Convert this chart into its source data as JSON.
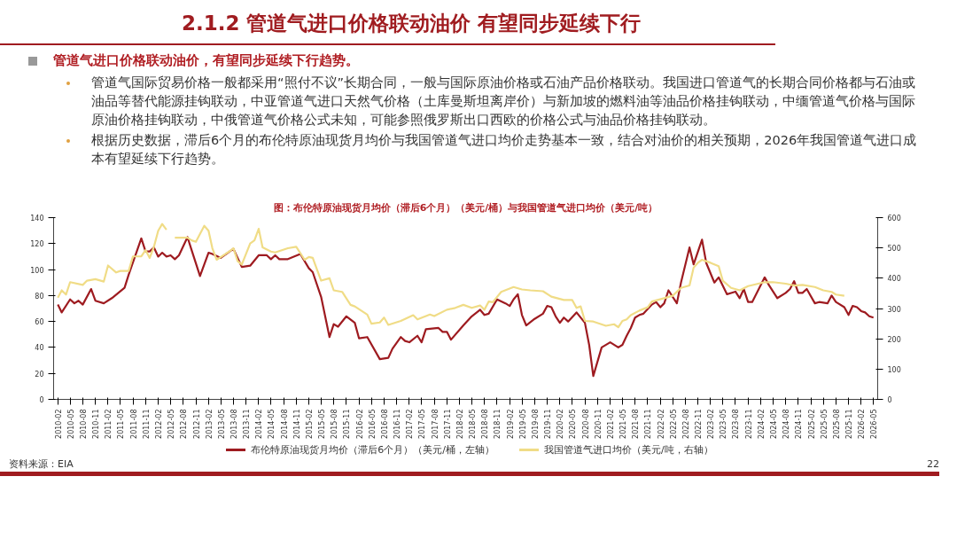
{
  "chart_data": {
    "type": "line",
    "title": "2.1.2 管道气进口价格联动油价 有望同步延续下行",
    "subtitle": "图：布伦特原油现货月均价（滞后6个月）（美元/桶）与我国管道气进口均价（美元/吨）",
    "annotations": [
      "管道气进口价格联动油价，有望同步延续下行趋势。",
      "管道气国际贸易价格一般都采用“照付不议”长期合同，一般与国际原油价格或石油产品价格联动。我国进口管道气的长期合同价格都与石油或油品等替代能源挂钩联动，中亚管道气进口天然气价格（土库曼斯坦离岸价）与新加坡的燃料油等油品价格挂钩联动，中缅管道气价格与国际原油价格挂钩联动，中俄管道气价格公式未知，可能参照俄罗斯出口西欧的价格公式与油品价格挂钩联动。",
      "根据历史数据，滞后6个月的布伦特原油现货月均价与我国管道气进口均价走势基本一致，结合对油价的相关预期，2026年我国管道气进口成本有望延续下行趋势。",
      "资料来源：EIA",
      "22"
    ],
    "xlim": [
      "2010-01",
      "2026-06"
    ],
    "xticks": [
      "2010-02",
      "2010-05",
      "2010-08",
      "2010-11",
      "2011-02",
      "2011-05",
      "2011-08",
      "2011-11",
      "2012-02",
      "2012-05",
      "2012-08",
      "2012-11",
      "2013-02",
      "2013-05",
      "2013-08",
      "2013-11",
      "2014-02",
      "2014-05",
      "2014-08",
      "2014-11",
      "2015-02",
      "2015-05",
      "2015-08",
      "2015-11",
      "2016-02",
      "2016-05",
      "2016-08",
      "2016-11",
      "2017-02",
      "2017-05",
      "2017-08",
      "2017-11",
      "2018-02",
      "2018-05",
      "2018-08",
      "2018-11",
      "2019-02",
      "2019-05",
      "2019-08",
      "2019-11",
      "2020-02",
      "2020-05",
      "2020-08",
      "2020-11",
      "2021-02",
      "2021-05",
      "2021-08",
      "2021-11",
      "2022-02",
      "2022-05",
      "2022-08",
      "2022-11",
      "2023-02",
      "2023-05",
      "2023-08",
      "2023-11",
      "2024-02",
      "2024-05",
      "2024-08",
      "2024-11",
      "2025-02",
      "2025-05",
      "2025-08",
      "2025-11",
      "2026-02",
      "2026-05"
    ],
    "ylim": [
      0,
      140
    ],
    "yticks": [
      0,
      20,
      40,
      60,
      80,
      100,
      120,
      140
    ],
    "y2lim": [
      0,
      600
    ],
    "y2ticks": [
      0,
      100,
      200,
      300,
      400,
      500,
      600
    ],
    "legend": "bottom",
    "series": [
      {
        "name": "布伦特原油现货月均价（滞后6个月）（美元/桶，左轴）",
        "color": "#9e1b20",
        "x": [
          "2010-02",
          "2010-03",
          "2010-05",
          "2010-06",
          "2010-07",
          "2010-08",
          "2010-10",
          "2010-11",
          "2011-01",
          "2011-03",
          "2011-06",
          "2011-07",
          "2011-10",
          "2011-11",
          "2011-12",
          "2012-01",
          "2012-02",
          "2012-03",
          "2012-04",
          "2012-05",
          "2012-06",
          "2012-07",
          "2012-09",
          "2012-10",
          "2012-12",
          "2013-02",
          "2013-03",
          "2013-05",
          "2013-08",
          "2013-10",
          "2013-12",
          "2014-02",
          "2014-04",
          "2014-05",
          "2014-06",
          "2014-07",
          "2014-09",
          "2014-12",
          "2015-02",
          "2015-03",
          "2015-05",
          "2015-07",
          "2015-08",
          "2015-09",
          "2015-11",
          "2016-01",
          "2016-02",
          "2016-04",
          "2016-07",
          "2016-09",
          "2016-10",
          "2016-12",
          "2017-01",
          "2017-02",
          "2017-04",
          "2017-05",
          "2017-06",
          "2017-09",
          "2017-10",
          "2017-11",
          "2017-12",
          "2018-03",
          "2018-05",
          "2018-07",
          "2018-08",
          "2018-09",
          "2018-11",
          "2019-01",
          "2019-02",
          "2019-03",
          "2019-04",
          "2019-05",
          "2019-06",
          "2019-08",
          "2019-10",
          "2019-11",
          "2019-12",
          "2020-01",
          "2020-02",
          "2020-03",
          "2020-04",
          "2020-06",
          "2020-08",
          "2020-09",
          "2020-10",
          "2020-12",
          "2021-02",
          "2021-04",
          "2021-05",
          "2021-06",
          "2021-07",
          "2021-08",
          "2021-09",
          "2021-10",
          "2021-12",
          "2022-01",
          "2022-02",
          "2022-03",
          "2022-04",
          "2022-06",
          "2022-07",
          "2022-09",
          "2022-10",
          "2022-12",
          "2023-01",
          "2023-03",
          "2023-04",
          "2023-06",
          "2023-07",
          "2023-08",
          "2023-09",
          "2023-10",
          "2023-11",
          "2023-12",
          "2024-03",
          "2024-04",
          "2024-06",
          "2024-08",
          "2024-09",
          "2024-10",
          "2024-11",
          "2024-12",
          "2025-01",
          "2025-03",
          "2025-04",
          "2025-06",
          "2025-07",
          "2025-08",
          "2025-10",
          "2025-11",
          "2025-12",
          "2026-01",
          "2026-02",
          "2026-03",
          "2026-04",
          "2026-05"
        ],
        "values": [
          73,
          67,
          77,
          74,
          76,
          73,
          85,
          76,
          74,
          78,
          86,
          96,
          124,
          114,
          114,
          117,
          110,
          113,
          110,
          111,
          108,
          111,
          125,
          115,
          95,
          113,
          112,
          109,
          116,
          102,
          103,
          111,
          111,
          108,
          111,
          108,
          108,
          112,
          101,
          98,
          79,
          48,
          58,
          56,
          64,
          59,
          47,
          48,
          31,
          32,
          39,
          48,
          45,
          44,
          49,
          44,
          54,
          55,
          52,
          52,
          46,
          57,
          64,
          69,
          65,
          66,
          77,
          74,
          72,
          77,
          81,
          65,
          57,
          62,
          66,
          72,
          71,
          64,
          59,
          63,
          60,
          67,
          59,
          42,
          18,
          40,
          44,
          40,
          42,
          49,
          55,
          63,
          65,
          66,
          73,
          75,
          71,
          74,
          84,
          74,
          90,
          117,
          104,
          123,
          105,
          90,
          94,
          81,
          82,
          83,
          78,
          85,
          75,
          75,
          94,
          88,
          78,
          82,
          85,
          91,
          82,
          82,
          85,
          74,
          75,
          74,
          80,
          75,
          71,
          65,
          72,
          71,
          68,
          67,
          64,
          63
        ]
      },
      {
        "name": "我国管道气进口均价（美元/吨，右轴）",
        "color": "#f0dc86",
        "axis": "y2",
        "x": [
          "2010-02",
          "2010-03",
          "2010-04",
          "2010-05",
          "2010-08",
          "2010-09",
          "2010-11",
          "2011-01",
          "2011-02",
          "2011-04",
          "2011-05",
          "2011-07",
          "2011-08",
          "2011-10",
          "2011-11",
          "2011-12",
          "2012-01",
          "2012-02",
          "2012-03",
          "2012-04",
          "2012-05",
          "2012-06",
          "2012-09",
          "2012-10",
          "2012-11",
          "2013-01",
          "2013-02",
          "2013-03",
          "2013-04",
          "2013-07",
          "2013-08",
          "2013-09",
          "2013-10",
          "2013-12",
          "2014-01",
          "2014-02",
          "2014-03",
          "2014-05",
          "2014-06",
          "2014-09",
          "2014-11",
          "2015-01",
          "2015-02",
          "2015-03",
          "2015-05",
          "2015-07",
          "2015-08",
          "2015-10",
          "2015-12",
          "2016-01",
          "2016-04",
          "2016-05",
          "2016-07",
          "2016-08",
          "2016-09",
          "2016-12",
          "2017-03",
          "2017-04",
          "2017-07",
          "2017-08",
          "2017-11",
          "2018-01",
          "2018-03",
          "2018-05",
          "2018-07",
          "2018-08",
          "2018-09",
          "2018-10",
          "2018-12",
          "2019-03",
          "2019-05",
          "2019-07",
          "2019-10",
          "2019-12",
          "2020-03",
          "2020-05",
          "2020-06",
          "2020-07",
          "2020-08",
          "2020-10",
          "2021-01",
          "2021-03",
          "2021-04",
          "2021-05",
          "2021-06",
          "2021-07",
          "2021-09",
          "2021-11",
          "2021-12",
          "2022-03",
          "2022-05",
          "2022-07",
          "2022-09",
          "2022-10",
          "2022-11",
          "2022-12",
          "2023-02",
          "2023-04",
          "2023-05",
          "2023-07",
          "2023-09",
          "2023-11",
          "2024-03",
          "2024-05",
          "2024-08",
          "2024-10",
          "2024-12",
          "2025-03",
          "2025-05",
          "2025-07",
          "2025-08",
          "2025-10"
        ],
        "values": [
          336,
          360,
          346,
          387,
          378,
          392,
          397,
          389,
          442,
          419,
          424,
          424,
          472,
          472,
          493,
          467,
          504,
          557,
          579,
          560,
          null,
          534,
          534,
          525,
          520,
          573,
          557,
          499,
          461,
          488,
          499,
          456,
          445,
          515,
          525,
          563,
          502,
          488,
          485,
          499,
          504,
          461,
          470,
          467,
          392,
          400,
          360,
          355,
          312,
          307,
          280,
          250,
          254,
          270,
          246,
          259,
          278,
          264,
          280,
          275,
          296,
          302,
          312,
          302,
          310,
          296,
          323,
          321,
          355,
          371,
          363,
          360,
          357,
          339,
          328,
          328,
          302,
          307,
          259,
          257,
          243,
          248,
          238,
          259,
          264,
          278,
          293,
          304,
          323,
          334,
          342,
          368,
          376,
          435,
          451,
          461,
          451,
          440,
          392,
          368,
          360,
          374,
          387,
          387,
          382,
          376,
          378,
          371,
          360,
          355,
          346,
          342
        ]
      }
    ]
  }
}
